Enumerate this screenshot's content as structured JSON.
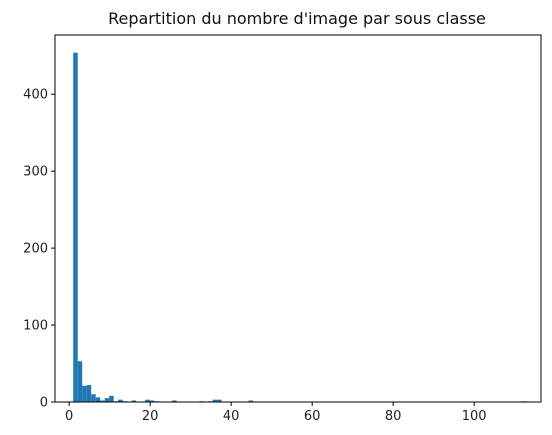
{
  "chart_data": {
    "type": "histogram",
    "title": "Repartition du nombre d'image par sous classe",
    "xlabel": "",
    "ylabel": "",
    "xlim": [
      -3.5,
      116.5
    ],
    "ylim": [
      0,
      477
    ],
    "x_ticks": [
      0,
      20,
      40,
      60,
      80,
      100
    ],
    "y_ticks": [
      0,
      100,
      200,
      300,
      400
    ],
    "bins": [
      {
        "x0": 1.0,
        "x1": 2.11,
        "value": 454
      },
      {
        "x0": 2.11,
        "x1": 3.22,
        "value": 53
      },
      {
        "x0": 3.22,
        "x1": 4.33,
        "value": 21
      },
      {
        "x0": 4.33,
        "x1": 5.44,
        "value": 22
      },
      {
        "x0": 5.44,
        "x1": 6.55,
        "value": 10
      },
      {
        "x0": 6.55,
        "x1": 7.66,
        "value": 6
      },
      {
        "x0": 7.66,
        "x1": 8.77,
        "value": 2
      },
      {
        "x0": 8.77,
        "x1": 9.88,
        "value": 5
      },
      {
        "x0": 9.88,
        "x1": 10.99,
        "value": 8
      },
      {
        "x0": 10.99,
        "x1": 12.1,
        "value": 1
      },
      {
        "x0": 12.1,
        "x1": 13.21,
        "value": 3
      },
      {
        "x0": 13.21,
        "x1": 14.32,
        "value": 1
      },
      {
        "x0": 15.43,
        "x1": 16.54,
        "value": 2
      },
      {
        "x0": 18.76,
        "x1": 19.87,
        "value": 3
      },
      {
        "x0": 19.87,
        "x1": 20.98,
        "value": 2
      },
      {
        "x0": 20.98,
        "x1": 22.09,
        "value": 1
      },
      {
        "x0": 25.42,
        "x1": 26.53,
        "value": 2
      },
      {
        "x0": 32.08,
        "x1": 33.19,
        "value": 1
      },
      {
        "x0": 34.3,
        "x1": 35.41,
        "value": 1
      },
      {
        "x0": 35.41,
        "x1": 36.52,
        "value": 3
      },
      {
        "x0": 36.52,
        "x1": 37.63,
        "value": 3
      },
      {
        "x0": 44.29,
        "x1": 45.4,
        "value": 2
      },
      {
        "x0": 111.89,
        "x1": 113.0,
        "value": 1
      }
    ],
    "color": "#1f77b4",
    "grid": false,
    "legend": "none"
  }
}
